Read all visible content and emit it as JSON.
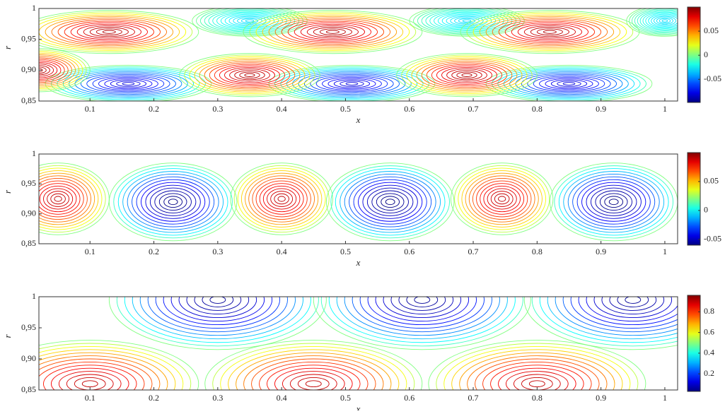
{
  "chart_data": [
    {
      "type": "contour",
      "xlabel": "x",
      "ylabel": "r",
      "xlim": [
        0.02,
        1.02
      ],
      "ylim": [
        0.85,
        1
      ],
      "xticks": [
        0.1,
        0.2,
        0.3,
        0.4,
        0.5,
        0.6,
        0.7,
        0.8,
        0.9,
        1
      ],
      "yticks": [
        {
          "value": 0.85,
          "label": "0,85"
        },
        {
          "value": 0.9,
          "label": "0,90"
        },
        {
          "value": 0.95,
          "label": "0,95"
        },
        1
      ],
      "clim": [
        -0.098,
        0.1
      ],
      "cticks": [
        -0.05,
        0,
        0.05
      ],
      "cells": [
        {
          "x": 0.16,
          "r": 0.878,
          "rx": 0.13,
          "ry": 0.03,
          "value": -0.08
        },
        {
          "x": 0.51,
          "r": 0.878,
          "rx": 0.13,
          "ry": 0.03,
          "value": -0.08
        },
        {
          "x": 0.85,
          "r": 0.878,
          "rx": 0.13,
          "ry": 0.03,
          "value": -0.08
        },
        {
          "x": 0.35,
          "r": 0.98,
          "rx": 0.09,
          "ry": 0.025,
          "value": -0.03
        },
        {
          "x": 0.69,
          "r": 0.98,
          "rx": 0.09,
          "ry": 0.025,
          "value": -0.03
        },
        {
          "x": 1.0,
          "r": 0.98,
          "rx": 0.06,
          "ry": 0.025,
          "value": -0.03
        },
        {
          "x": 0.13,
          "r": 0.962,
          "rx": 0.14,
          "ry": 0.035,
          "value": 0.09
        },
        {
          "x": 0.48,
          "r": 0.962,
          "rx": 0.14,
          "ry": 0.035,
          "value": 0.09
        },
        {
          "x": 0.82,
          "r": 0.962,
          "rx": 0.14,
          "ry": 0.035,
          "value": 0.09
        },
        {
          "x": 0.35,
          "r": 0.892,
          "rx": 0.11,
          "ry": 0.035,
          "value": 0.09
        },
        {
          "x": 0.69,
          "r": 0.892,
          "rx": 0.11,
          "ry": 0.035,
          "value": 0.09
        },
        {
          "x": 0.02,
          "r": 0.9,
          "rx": 0.08,
          "ry": 0.035,
          "value": 0.09
        }
      ]
    },
    {
      "type": "contour",
      "xlabel": "x",
      "ylabel": "r",
      "xlim": [
        0.02,
        1.02
      ],
      "ylim": [
        0.85,
        1
      ],
      "xticks": [
        0.1,
        0.2,
        0.3,
        0.4,
        0.5,
        0.6,
        0.7,
        0.8,
        0.9,
        1
      ],
      "yticks": [
        {
          "value": 0.85,
          "label": "0,85"
        },
        {
          "value": 0.9,
          "label": "0,90"
        },
        {
          "value": 0.95,
          "label": "0,95"
        },
        1
      ],
      "clim": [
        -0.06,
        0.1
      ],
      "cticks": [
        -0.05,
        0,
        0.05
      ],
      "cells": [
        {
          "x": 0.05,
          "r": 0.925,
          "rx": 0.08,
          "ry": 0.06,
          "value": 0.09
        },
        {
          "x": 0.4,
          "r": 0.925,
          "rx": 0.08,
          "ry": 0.06,
          "value": 0.09
        },
        {
          "x": 0.745,
          "r": 0.925,
          "rx": 0.08,
          "ry": 0.06,
          "value": 0.09
        },
        {
          "x": 0.23,
          "r": 0.92,
          "rx": 0.1,
          "ry": 0.065,
          "value": -0.06
        },
        {
          "x": 0.57,
          "r": 0.92,
          "rx": 0.1,
          "ry": 0.065,
          "value": -0.06
        },
        {
          "x": 0.92,
          "r": 0.92,
          "rx": 0.1,
          "ry": 0.065,
          "value": -0.06
        }
      ]
    },
    {
      "type": "contour",
      "xlabel": "x",
      "ylabel": "r",
      "xlim": [
        0.02,
        1.02
      ],
      "ylim": [
        0.85,
        1
      ],
      "xticks": [
        0.1,
        0.2,
        0.3,
        0.4,
        0.5,
        0.6,
        0.7,
        0.8,
        0.9,
        1
      ],
      "yticks": [
        {
          "value": 0.85,
          "label": "0,85"
        },
        {
          "value": 0.9,
          "label": "0,90"
        },
        {
          "value": 0.95,
          "label": "0,95"
        },
        1
      ],
      "clim": [
        0.03,
        0.96
      ],
      "cticks": [
        0.2,
        0.4,
        0.6,
        0.8
      ],
      "cells": [
        {
          "x": 0.1,
          "r": 0.86,
          "rx": 0.17,
          "ry": 0.07,
          "value": 0.9
        },
        {
          "x": 0.45,
          "r": 0.86,
          "rx": 0.17,
          "ry": 0.07,
          "value": 0.9
        },
        {
          "x": 0.8,
          "r": 0.86,
          "rx": 0.17,
          "ry": 0.07,
          "value": 0.9
        },
        {
          "x": 0.3,
          "r": 0.995,
          "rx": 0.17,
          "ry": 0.08,
          "value": 0.05
        },
        {
          "x": 0.62,
          "r": 0.995,
          "rx": 0.17,
          "ry": 0.08,
          "value": 0.05
        },
        {
          "x": 0.95,
          "r": 0.995,
          "rx": 0.17,
          "ry": 0.08,
          "value": 0.05
        }
      ]
    }
  ]
}
